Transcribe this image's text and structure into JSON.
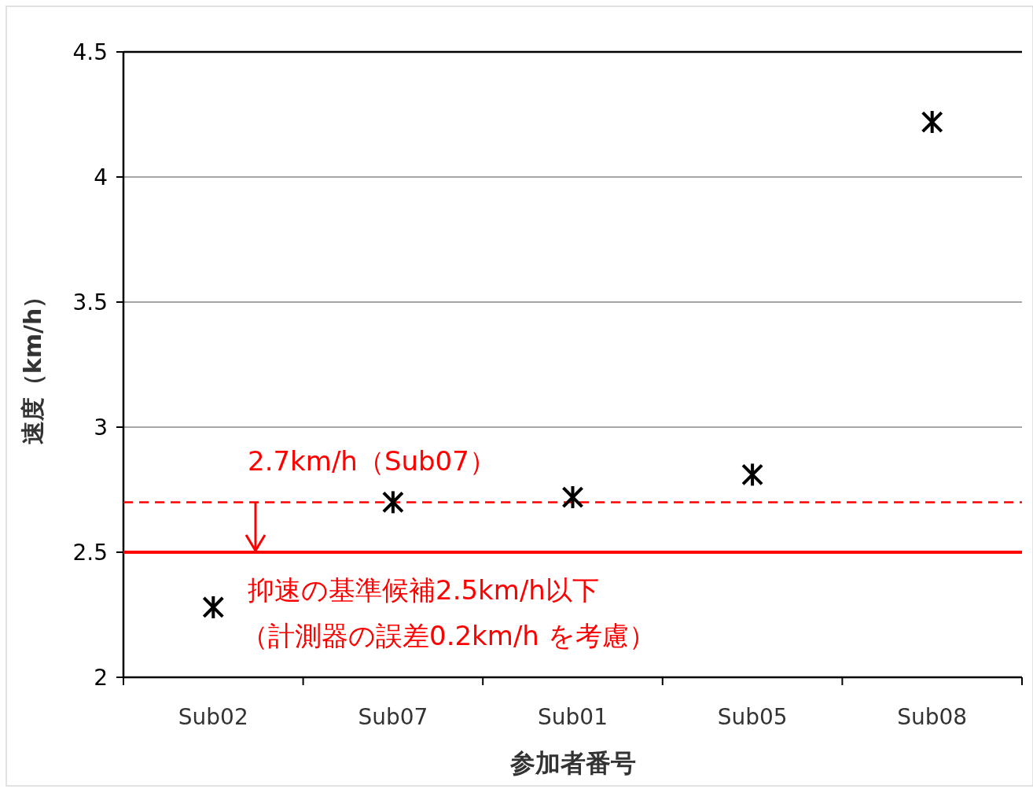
{
  "chart_data": {
    "type": "scatter",
    "xlabel": "参加者番号",
    "ylabel": "速度（km/h）",
    "categories": [
      "Sub02",
      "Sub07",
      "Sub01",
      "Sub05",
      "Sub08"
    ],
    "values": [
      2.28,
      2.7,
      2.72,
      2.81,
      4.22
    ],
    "color": "#000000",
    "marker": "cross",
    "ylim": [
      2,
      4.5
    ],
    "yticks": [
      2,
      2.5,
      3,
      3.5,
      4,
      4.5
    ],
    "grid": "y",
    "ref_lines": [
      {
        "axis": "y",
        "value": 2.7,
        "label": "2.7km/h（Sub07）",
        "color": "#ff0000",
        "line_style": "dashed"
      },
      {
        "axis": "y",
        "value": 2.5,
        "label": "抑速の基準候補2.5km/h以下",
        "color": "#ff0000",
        "line_style": "solid"
      }
    ],
    "annotations": [
      "（計測器の誤差0.2km/h を考慮）"
    ]
  }
}
